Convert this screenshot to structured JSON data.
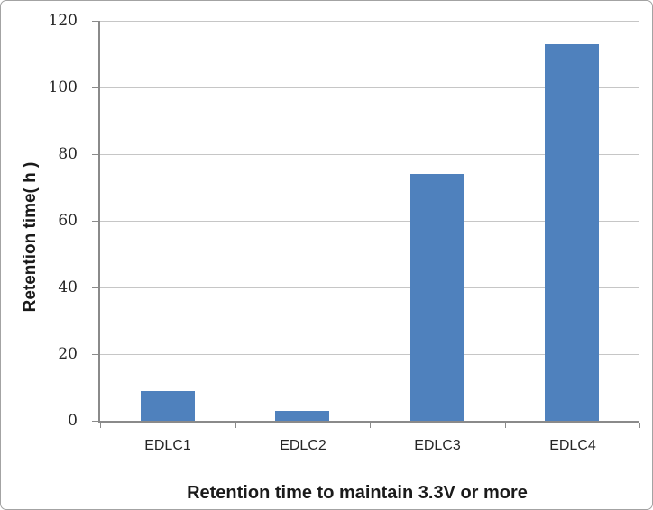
{
  "chart_data": {
    "type": "bar",
    "title": "Retention time to maintain 3.3V or more",
    "xlabel": "",
    "ylabel": "Retention time( h )",
    "categories": [
      "EDLC1",
      "EDLC2",
      "EDLC3",
      "EDLC4"
    ],
    "values": [
      9,
      3,
      74,
      113
    ],
    "ylim": [
      0,
      120
    ],
    "yticks": [
      0,
      20,
      40,
      60,
      80,
      100,
      120
    ],
    "grid": true,
    "legend": false,
    "bar_color": "#4F81BD"
  },
  "colors": {
    "bar": "#4F81BD",
    "axis": "#8A8A8A",
    "gridline": "#C6C6C6",
    "text": "#262626",
    "frame_border": "#A3A3A3",
    "background": "#FFFFFF"
  }
}
